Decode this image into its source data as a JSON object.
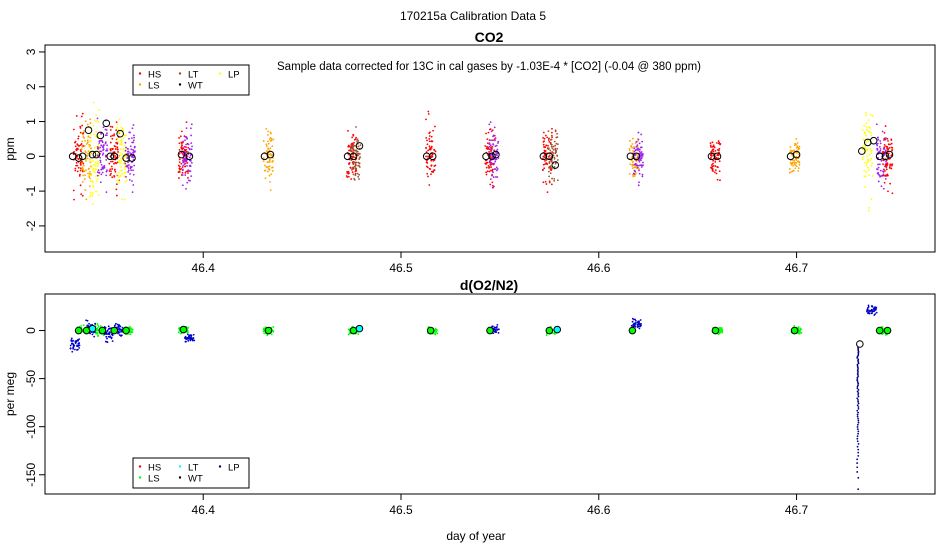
{
  "figure_title": "170215a   Calibration Data 5",
  "chart_data": [
    {
      "id": "co2",
      "type": "scatter",
      "title": "CO2",
      "subtitle": "Sample data corrected for 13C in cal gases by -1.03E-4 * [CO2] (-0.04 @ 380 ppm)",
      "xlabel": "",
      "ylabel": "ppm",
      "xlim": [
        46.32,
        46.77
      ],
      "ylim": [
        -2.75,
        3.2
      ],
      "xticks": [
        46.4,
        46.5,
        46.6,
        46.7
      ],
      "xtick_labels": [
        "46.4",
        "46.5",
        "46.6",
        "46.7"
      ],
      "yticks": [
        -2,
        -1,
        0,
        1,
        2,
        3
      ],
      "ytick_labels": [
        "-2",
        "-1",
        "0",
        "1",
        "2",
        "3"
      ],
      "legend": {
        "position": "top-left",
        "entries": [
          {
            "label": "HS",
            "color": "#ff0000"
          },
          {
            "label": "LS",
            "color": "#ffa500"
          },
          {
            "label": "LT",
            "color": "#a0522d"
          },
          {
            "label": "WT",
            "color": "#000000"
          },
          {
            "label": "LP",
            "color": "#ffff00"
          }
        ]
      },
      "clusters": [
        {
          "x": 46.337,
          "gas": "HS",
          "color": "#ff0000",
          "spread": 0.9
        },
        {
          "x": 46.341,
          "gas": "LS",
          "color": "#ffa500",
          "spread": 0.9
        },
        {
          "x": 46.345,
          "gas": "LP",
          "color": "#ffff00",
          "spread": 1.1
        },
        {
          "x": 46.349,
          "gas": "WT",
          "color": "#a020f0",
          "spread": 0.9
        },
        {
          "x": 46.355,
          "gas": "HS",
          "color": "#ff0000",
          "spread": 0.9
        },
        {
          "x": 46.359,
          "gas": "LP",
          "color": "#ffff00",
          "spread": 1.0
        },
        {
          "x": 46.363,
          "gas": "WT",
          "color": "#a020f0",
          "spread": 0.8
        },
        {
          "x": 46.39,
          "gas": "HS",
          "color": "#ff0000",
          "spread": 0.8
        },
        {
          "x": 46.392,
          "gas": "WT",
          "color": "#a020f0",
          "spread": 0.7
        },
        {
          "x": 46.433,
          "gas": "LS",
          "color": "#ffa500",
          "spread": 0.7
        },
        {
          "x": 46.475,
          "gas": "HS",
          "color": "#ff0000",
          "spread": 0.8
        },
        {
          "x": 46.477,
          "gas": "LT",
          "color": "#a0522d",
          "spread": 0.6
        },
        {
          "x": 46.515,
          "gas": "HS",
          "color": "#ff0000",
          "spread": 0.8
        },
        {
          "x": 46.545,
          "gas": "HS",
          "color": "#ff0000",
          "spread": 0.8
        },
        {
          "x": 46.547,
          "gas": "WT",
          "color": "#a020f0",
          "spread": 0.7
        },
        {
          "x": 46.574,
          "gas": "HS",
          "color": "#ff0000",
          "spread": 0.8
        },
        {
          "x": 46.577,
          "gas": "LT",
          "color": "#a0522d",
          "spread": 0.7
        },
        {
          "x": 46.618,
          "gas": "LS",
          "color": "#ffa500",
          "spread": 0.6
        },
        {
          "x": 46.62,
          "gas": "WT",
          "color": "#a020f0",
          "spread": 0.6
        },
        {
          "x": 46.659,
          "gas": "HS",
          "color": "#ff0000",
          "spread": 0.6
        },
        {
          "x": 46.699,
          "gas": "LS",
          "color": "#ffa500",
          "spread": 0.6
        },
        {
          "x": 46.736,
          "gas": "LP",
          "color": "#ffff00",
          "spread": 1.1
        },
        {
          "x": 46.743,
          "gas": "WT",
          "color": "#a020f0",
          "spread": 0.8
        },
        {
          "x": 46.746,
          "gas": "HS",
          "color": "#ff0000",
          "spread": 0.8
        }
      ],
      "means": [
        {
          "x": 46.334,
          "y": 0.0
        },
        {
          "x": 46.337,
          "y": -0.05
        },
        {
          "x": 46.339,
          "y": 0.0
        },
        {
          "x": 46.342,
          "y": 0.75
        },
        {
          "x": 46.344,
          "y": 0.05
        },
        {
          "x": 46.346,
          "y": 0.05
        },
        {
          "x": 46.348,
          "y": 0.6
        },
        {
          "x": 46.351,
          "y": 0.95
        },
        {
          "x": 46.353,
          "y": 0.0
        },
        {
          "x": 46.355,
          "y": 0.0
        },
        {
          "x": 46.358,
          "y": 0.65
        },
        {
          "x": 46.361,
          "y": -0.05
        },
        {
          "x": 46.364,
          "y": -0.05
        },
        {
          "x": 46.389,
          "y": 0.05
        },
        {
          "x": 46.393,
          "y": 0.0
        },
        {
          "x": 46.431,
          "y": 0.0
        },
        {
          "x": 46.434,
          "y": 0.05
        },
        {
          "x": 46.473,
          "y": 0.0
        },
        {
          "x": 46.476,
          "y": 0.0
        },
        {
          "x": 46.479,
          "y": 0.3
        },
        {
          "x": 46.513,
          "y": 0.0
        },
        {
          "x": 46.516,
          "y": 0.0
        },
        {
          "x": 46.543,
          "y": 0.0
        },
        {
          "x": 46.546,
          "y": 0.0
        },
        {
          "x": 46.548,
          "y": 0.05
        },
        {
          "x": 46.572,
          "y": 0.0
        },
        {
          "x": 46.575,
          "y": 0.0
        },
        {
          "x": 46.578,
          "y": -0.25
        },
        {
          "x": 46.616,
          "y": 0.0
        },
        {
          "x": 46.619,
          "y": 0.0
        },
        {
          "x": 46.657,
          "y": 0.0
        },
        {
          "x": 46.66,
          "y": 0.0
        },
        {
          "x": 46.697,
          "y": 0.0
        },
        {
          "x": 46.7,
          "y": 0.05
        },
        {
          "x": 46.733,
          "y": 0.15
        },
        {
          "x": 46.736,
          "y": 0.4
        },
        {
          "x": 46.739,
          "y": 0.45
        },
        {
          "x": 46.742,
          "y": 0.0
        },
        {
          "x": 46.745,
          "y": 0.0
        },
        {
          "x": 46.747,
          "y": 0.05
        }
      ]
    },
    {
      "id": "o2n2",
      "type": "scatter",
      "title": "d(O2/N2)",
      "xlabel": "day of year",
      "ylabel": "per meg",
      "xlim": [
        46.32,
        46.77
      ],
      "ylim": [
        -170,
        38
      ],
      "xticks": [
        46.4,
        46.5,
        46.6,
        46.7
      ],
      "xtick_labels": [
        "46.4",
        "46.5",
        "46.6",
        "46.7"
      ],
      "yticks": [
        -150,
        -100,
        -50,
        0
      ],
      "ytick_labels": [
        "-150",
        "-100",
        "-50",
        "0"
      ],
      "legend": {
        "position": "bottom-left",
        "entries": [
          {
            "label": "HS",
            "color": "#ff0000"
          },
          {
            "label": "LS",
            "color": "#00ff00"
          },
          {
            "label": "LT",
            "color": "#00ffff"
          },
          {
            "label": "WT",
            "color": "#000000"
          },
          {
            "label": "LP",
            "color": "#00008b"
          }
        ]
      },
      "clusters": [
        {
          "x": 46.335,
          "y": -14,
          "color": "#0000cd",
          "spread": 6
        },
        {
          "x": 46.339,
          "y": 0,
          "color": "#00ff00",
          "spread": 4
        },
        {
          "x": 46.343,
          "y": 2,
          "color": "#0000cd",
          "spread": 7
        },
        {
          "x": 46.348,
          "y": 0,
          "color": "#00ff00",
          "spread": 5
        },
        {
          "x": 46.352,
          "y": -3,
          "color": "#0000cd",
          "spread": 8
        },
        {
          "x": 46.357,
          "y": 1,
          "color": "#0000cd",
          "spread": 7
        },
        {
          "x": 46.362,
          "y": 0,
          "color": "#00ff00",
          "spread": 4
        },
        {
          "x": 46.39,
          "y": 1,
          "color": "#00ff00",
          "spread": 4
        },
        {
          "x": 46.393,
          "y": -8,
          "color": "#0000cd",
          "spread": 4
        },
        {
          "x": 46.433,
          "y": 0,
          "color": "#00ff00",
          "spread": 4
        },
        {
          "x": 46.476,
          "y": 0,
          "color": "#00ff00",
          "spread": 4
        },
        {
          "x": 46.516,
          "y": 0,
          "color": "#00ff00",
          "spread": 4
        },
        {
          "x": 46.547,
          "y": 1,
          "color": "#0000cd",
          "spread": 4
        },
        {
          "x": 46.576,
          "y": 0,
          "color": "#00ff00",
          "spread": 4
        },
        {
          "x": 46.619,
          "y": 6,
          "color": "#0000cd",
          "spread": 5
        },
        {
          "x": 46.66,
          "y": 0,
          "color": "#00ff00",
          "spread": 4
        },
        {
          "x": 46.7,
          "y": 0,
          "color": "#00ff00",
          "spread": 4
        },
        {
          "x": 46.738,
          "y": 22,
          "color": "#0000cd",
          "spread": 5
        },
        {
          "x": 46.745,
          "y": 0,
          "color": "#00ff00",
          "spread": 4
        }
      ],
      "tail": {
        "x": 46.731,
        "y_from": -165,
        "y_to": -15,
        "color": "#00008b"
      },
      "means": [
        {
          "x": 46.337,
          "y": 0,
          "color": "#00ff00"
        },
        {
          "x": 46.341,
          "y": 0,
          "color": "#00ff00"
        },
        {
          "x": 46.344,
          "y": 2,
          "color": "#00ffff"
        },
        {
          "x": 46.349,
          "y": 0,
          "color": "#00ff00"
        },
        {
          "x": 46.355,
          "y": 0,
          "color": "#00ff00"
        },
        {
          "x": 46.361,
          "y": 0,
          "color": "#00ff00"
        },
        {
          "x": 46.39,
          "y": 1,
          "color": "#00ff00"
        },
        {
          "x": 46.433,
          "y": 0,
          "color": "#00ff00"
        },
        {
          "x": 46.476,
          "y": 0,
          "color": "#00ff00"
        },
        {
          "x": 46.479,
          "y": 2,
          "color": "#00ffff"
        },
        {
          "x": 46.515,
          "y": 0,
          "color": "#00ff00"
        },
        {
          "x": 46.545,
          "y": 0,
          "color": "#00ff00"
        },
        {
          "x": 46.575,
          "y": 0,
          "color": "#00ff00"
        },
        {
          "x": 46.579,
          "y": 1,
          "color": "#00ffff"
        },
        {
          "x": 46.617,
          "y": 0,
          "color": "#00ff00"
        },
        {
          "x": 46.659,
          "y": 0,
          "color": "#00ff00"
        },
        {
          "x": 46.699,
          "y": 0,
          "color": "#00ff00"
        },
        {
          "x": 46.732,
          "y": -14,
          "color": "#ffffff"
        },
        {
          "x": 46.742,
          "y": 0,
          "color": "#00ff00"
        },
        {
          "x": 46.746,
          "y": 0,
          "color": "#00ff00"
        }
      ]
    }
  ]
}
